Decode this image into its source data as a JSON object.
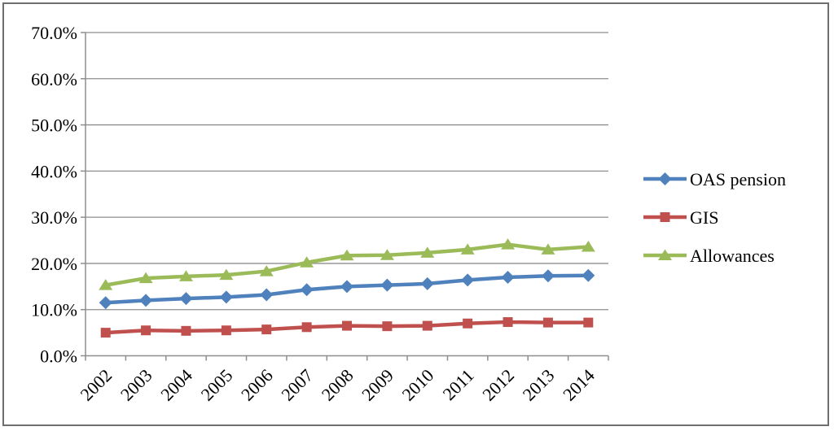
{
  "figure": {
    "background": "#FFFFFF",
    "border_color": "#6F6F6F"
  },
  "chart_data": {
    "type": "line",
    "title": "",
    "categories": [
      "2002",
      "2003",
      "2004",
      "2005",
      "2006",
      "2007",
      "2008",
      "2009",
      "2010",
      "2011",
      "2012",
      "2013",
      "2014"
    ],
    "series": [
      {
        "name": "OAS pension",
        "marker": "diamond",
        "color": "#4F81BD",
        "values": [
          11.5,
          12.0,
          12.4,
          12.7,
          13.2,
          14.3,
          15.0,
          15.3,
          15.6,
          16.4,
          17.0,
          17.3,
          17.4
        ]
      },
      {
        "name": "GIS",
        "marker": "square",
        "color": "#C0504D",
        "values": [
          5.0,
          5.5,
          5.4,
          5.5,
          5.7,
          6.2,
          6.5,
          6.4,
          6.5,
          7.0,
          7.3,
          7.2,
          7.2
        ]
      },
      {
        "name": "Allowances",
        "marker": "triangle",
        "color": "#9BBB59",
        "values": [
          15.3,
          16.8,
          17.2,
          17.5,
          18.3,
          20.2,
          21.7,
          21.8,
          22.3,
          23.0,
          24.1,
          23.0,
          23.6
        ]
      }
    ],
    "y_axis": {
      "min": 0,
      "max": 70,
      "step": 10,
      "tick_labels": [
        "70.0%",
        "60.0%",
        "50.0%",
        "40.0%",
        "30.0%",
        "20.0%",
        "10.0%",
        "0.0%"
      ]
    },
    "x_axis": {
      "tick_labels_rotation_deg": -45
    },
    "legend": {
      "position": "right",
      "items": [
        "OAS pension",
        "GIS",
        "Allowances"
      ]
    },
    "grid": true,
    "colors": {
      "gridline": "#8E8E8E",
      "axis": "#8E8E8E",
      "text": "#000000"
    }
  }
}
